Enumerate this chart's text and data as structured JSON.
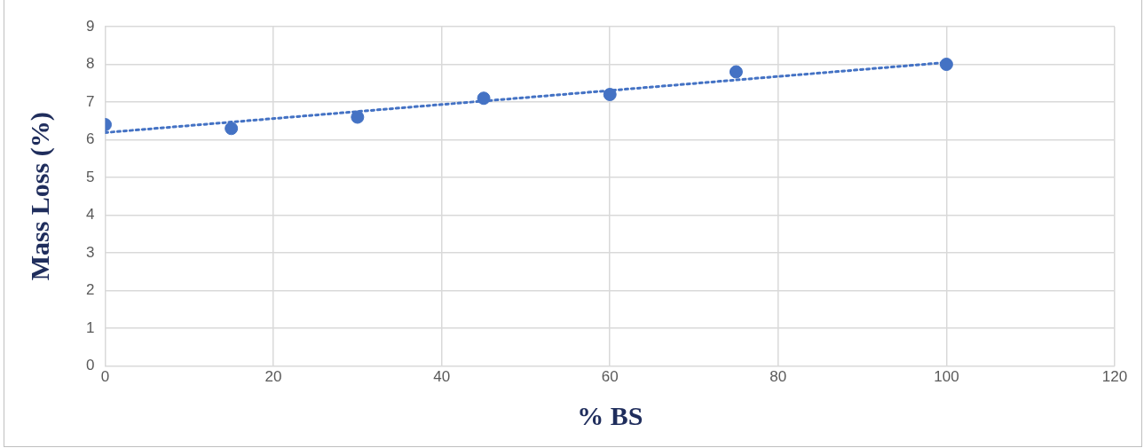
{
  "chart_data": {
    "type": "scatter",
    "xlabel": "% BS",
    "ylabel": "Mass Loss (%)",
    "xlim": [
      0,
      120
    ],
    "xticks": [
      0,
      20,
      40,
      60,
      80,
      100,
      120
    ],
    "ylim": [
      0,
      9
    ],
    "yticks": [
      0,
      1,
      2,
      3,
      4,
      5,
      6,
      7,
      8,
      9
    ],
    "grid": true,
    "legend": false,
    "marker": "circle",
    "series": [
      {
        "type": "scatter",
        "color": "#4472c4",
        "x": [
          0,
          15,
          30,
          45,
          60,
          75,
          100
        ],
        "values": [
          6.4,
          6.3,
          6.6,
          7.1,
          7.2,
          7.8,
          8.0
        ]
      },
      {
        "type": "line",
        "color": "#4472c4",
        "line_style": "dotted",
        "marker": "none",
        "x": [
          0,
          100
        ],
        "values": [
          6.19,
          8.05
        ]
      }
    ]
  }
}
